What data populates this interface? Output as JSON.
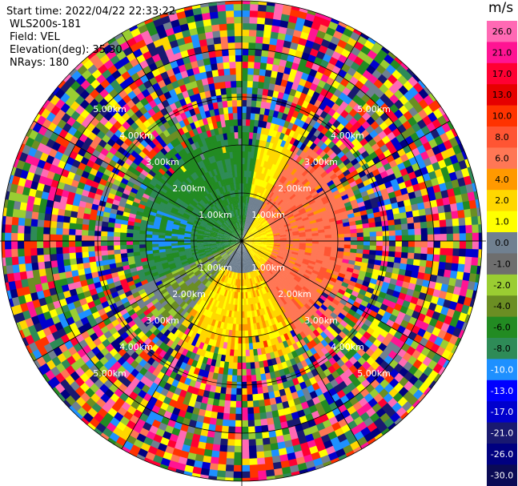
{
  "header": {
    "start_time": {
      "label": "Start time:",
      "value": "2022/04/22 22:33:22"
    },
    "instrument": "WLS200s-181",
    "field": {
      "label": "Field:",
      "value": "VEL"
    },
    "elevation": {
      "label": "Elevation(deg):",
      "value": "35.30"
    },
    "nrays": {
      "label": "NRays:",
      "value": "180"
    }
  },
  "range_rings": [
    {
      "label": "1.00km",
      "km": 1
    },
    {
      "label": "2.00km",
      "km": 2
    },
    {
      "label": "3.00km",
      "km": 3
    },
    {
      "label": "4.00km",
      "km": 4
    },
    {
      "label": "5.00km",
      "km": 5
    }
  ],
  "colorbar": {
    "unit": "m/s",
    "ticks": [
      "26.0",
      "21.0",
      "17.0",
      "13.0",
      "10.0",
      "8.0",
      "6.0",
      "4.0",
      "2.0",
      "1.0",
      "0.0",
      "-1.0",
      "-2.0",
      "-4.0",
      "-6.0",
      "-8.0",
      "-10.0",
      "-13.0",
      "-17.0",
      "-21.0",
      "-26.0",
      "-30.0"
    ],
    "colors": [
      "#ff69b4",
      "#ff1493",
      "#ff0033",
      "#e60000",
      "#ff3300",
      "#ff5533",
      "#ff7755",
      "#ff9900",
      "#ffd700",
      "#ffff00",
      "#708090",
      "#6e6e6e",
      "#9acd32",
      "#6b8e23",
      "#228b22",
      "#2e8b57",
      "#1e90ff",
      "#0000ff",
      "#0000cd",
      "#191970",
      "#000080",
      "#0a0a55"
    ]
  }
}
